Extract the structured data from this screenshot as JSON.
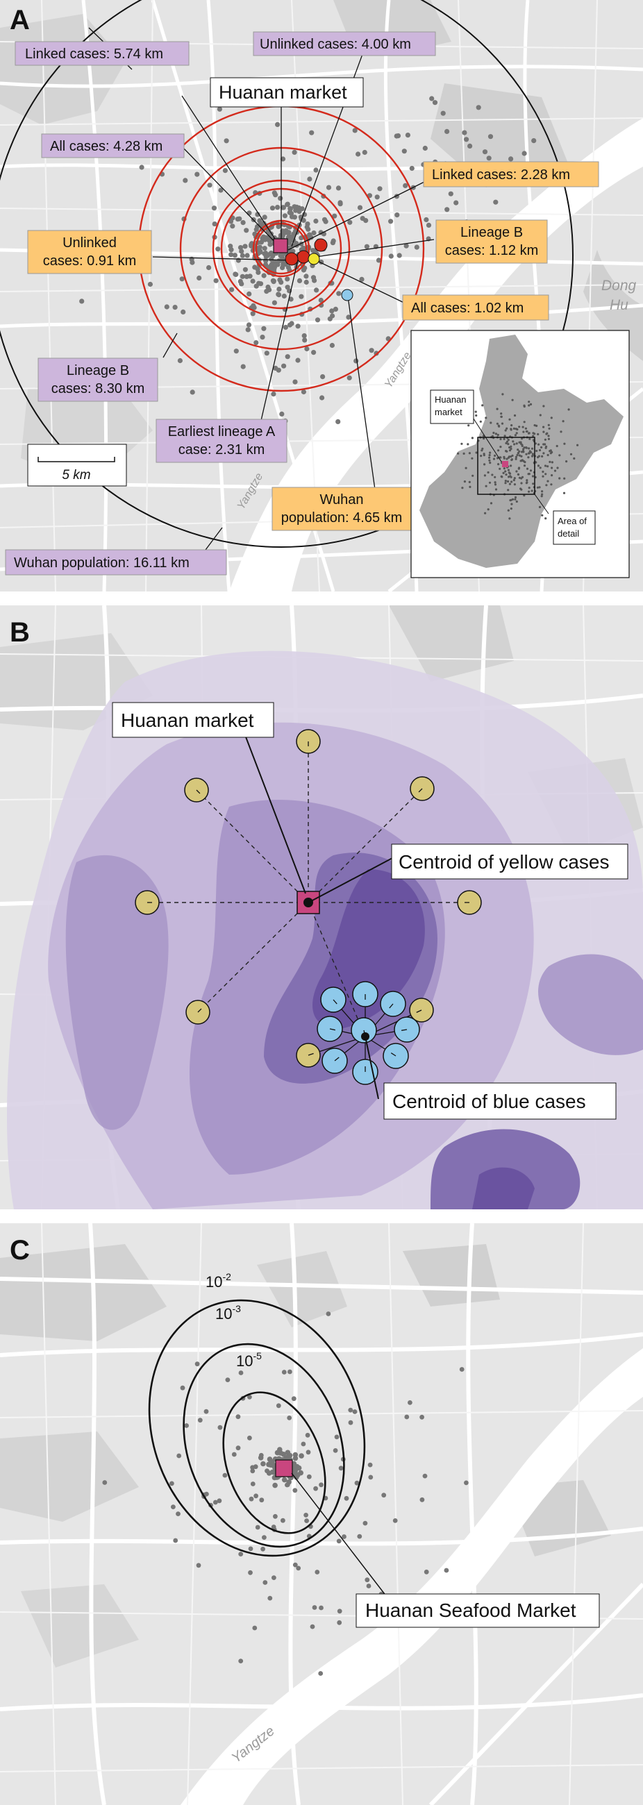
{
  "panel_a": {
    "letter": "A",
    "labels": {
      "linked_5_74": "Linked cases: 5.74 km",
      "unlinked_4_00": "Unlinked cases: 4.00 km",
      "huanan_market": "Huanan market",
      "all_4_28": "All cases: 4.28 km",
      "linked_2_28": "Linked cases: 2.28 km",
      "unlinked_0_91_l1": "Unlinked",
      "unlinked_0_91_l2": "cases: 0.91 km",
      "lineage_b_1_12_l1": "Lineage B",
      "lineage_b_1_12_l2": "cases: 1.12 km",
      "all_1_02": "All cases: 1.02 km",
      "lineage_b_8_30_l1": "Lineage B",
      "lineage_b_8_30_l2": "cases: 8.30 km",
      "earliest_a_l1": "Earliest lineage A",
      "earliest_a_l2": "case: 2.31 km",
      "wuhan_4_65_l1": "Wuhan",
      "wuhan_4_65_l2": "population: 4.65 km",
      "wuhan_16_11": "Wuhan population: 16.11 km",
      "scale": "5 km",
      "place_dong": "Dong",
      "place_hu": "Hu",
      "river_1": "Yangtze",
      "river_2": "Yangtze",
      "inset_market_l1": "Huanan",
      "inset_market_l2": "market",
      "inset_area_l1": "Area of",
      "inset_area_l2": "detail"
    },
    "colors": {
      "purple_box": "#cdb6dc",
      "orange_box": "#fdc874",
      "circle": "#d42a1c",
      "market": "#c9467f"
    }
  },
  "panel_b": {
    "letter": "B",
    "labels": {
      "huanan_market": "Huanan market",
      "centroid_yellow": "Centroid of yellow cases",
      "centroid_blue": "Centroid of blue cases"
    },
    "colors": {
      "yellow_case": "#d6c77b",
      "blue_case": "#8ec9ea"
    }
  },
  "panel_c": {
    "letter": "C",
    "contours": {
      "c1_base": "10",
      "c1_exp": "-2",
      "c2_base": "10",
      "c2_exp": "-3",
      "c3_base": "10",
      "c3_exp": "-5"
    },
    "labels": {
      "market": "Huanan Seafood Market",
      "river": "Yangtze"
    }
  }
}
